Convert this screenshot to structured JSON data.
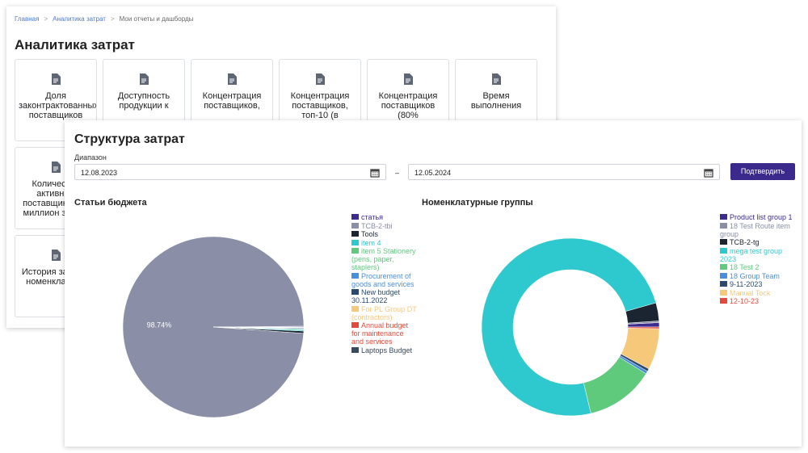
{
  "breadcrumb": [
    "Главная",
    "Аналитика затрат",
    "Мои отчеты и дашборды"
  ],
  "page_title": "Аналитика затрат",
  "tiles": [
    "Доля законтрактованных поставщиков",
    "Доступность продукции к",
    "Концентрация поставщиков,",
    "Концентрация поставщиков, топ-10 (в",
    "Концентрация поставщиков (80%",
    "Время выполнения",
    "Количество активных поставщиков на миллион затрат",
    "История закупок номенклатуры"
  ],
  "modal": {
    "title": "Структура затрат",
    "range_label": "Диапазон",
    "date_from": "12.08.2023",
    "date_separator": "–",
    "date_to": "12.05.2024",
    "submit": "Подтвердить"
  },
  "chart_data": [
    {
      "type": "pie",
      "title": "Статьи бюджета",
      "categories": [
        "статья",
        "TCB-2-tbi",
        "Tools",
        "item 4",
        "item 5 Stationery (pens, paper, staplers)",
        "Procurement of goods and services",
        "New budget 30.11.2022",
        "For PL Group DT (contractors)",
        "Annual budget for maintenance and services",
        "Laptops Budget"
      ],
      "values": [
        0.15,
        98.74,
        0.4,
        0.2,
        0.15,
        0.15,
        0.1,
        0.03,
        0.03,
        0.05
      ],
      "value_labels": [
        null,
        "98.74%",
        null,
        null,
        null,
        null,
        null,
        null,
        null,
        null
      ],
      "colors": [
        "#3d2b8e",
        "#8a8ea6",
        "#1b2532",
        "#2ec9cf",
        "#5fc97c",
        "#4a8fdb",
        "#2b4a6d",
        "#f6c87a",
        "#e5493b",
        "#394a5c"
      ]
    },
    {
      "type": "doughnut",
      "title": "Номенклатурные группы",
      "categories": [
        "Product list group 1",
        "18 Test Route item group",
        "TCB-2-tg",
        "mega test group 2023",
        "18 Test 2",
        "18 Group Team",
        "9-11-2023",
        "Manual Tock",
        "12-10-23"
      ],
      "values": [
        0.8,
        0.3,
        3.3,
        74.3,
        12.5,
        0.5,
        0.5,
        7.5,
        0.3
      ],
      "colors": [
        "#3d2b8e",
        "#8a8ea6",
        "#1b2532",
        "#2ec9cf",
        "#5fc97c",
        "#4a8fdb",
        "#2b4a6d",
        "#f6c87a",
        "#e5493b"
      ]
    }
  ]
}
